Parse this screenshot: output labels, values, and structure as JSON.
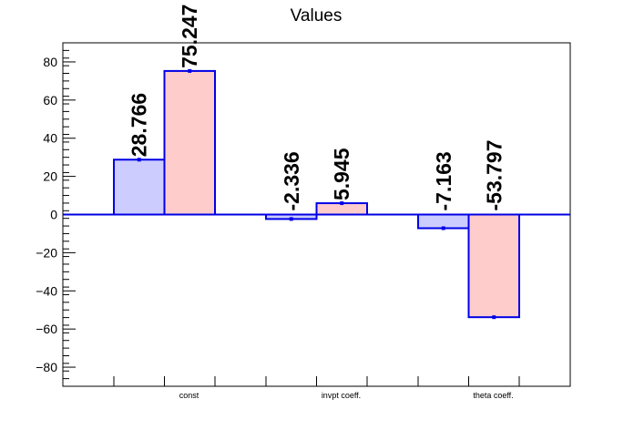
{
  "chart_data": {
    "type": "bar",
    "title": "Values",
    "categories": [
      "const",
      "invpt coeff.",
      "theta coeff."
    ],
    "ylim": [
      -90,
      90
    ],
    "yticks": [
      -80,
      -60,
      -40,
      -20,
      0,
      20,
      40,
      60,
      80
    ],
    "ytick_labels": [
      "−80",
      "−60",
      "−40",
      "−20",
      "0",
      "20",
      "40",
      "60",
      "80"
    ],
    "grid": false,
    "legend": "none",
    "series": [
      {
        "values": [
          28.766,
          -2.336,
          -7.163
        ],
        "labels": [
          "28.766",
          "-2.336",
          "-7.163"
        ],
        "fill": "#ccccff",
        "stroke": "#0000e6"
      },
      {
        "values": [
          75.247,
          5.945,
          -53.797
        ],
        "labels": [
          "75.247",
          "5.945",
          "-53.797"
        ],
        "fill": "#ffcccc",
        "stroke": "#0000e6"
      }
    ]
  }
}
